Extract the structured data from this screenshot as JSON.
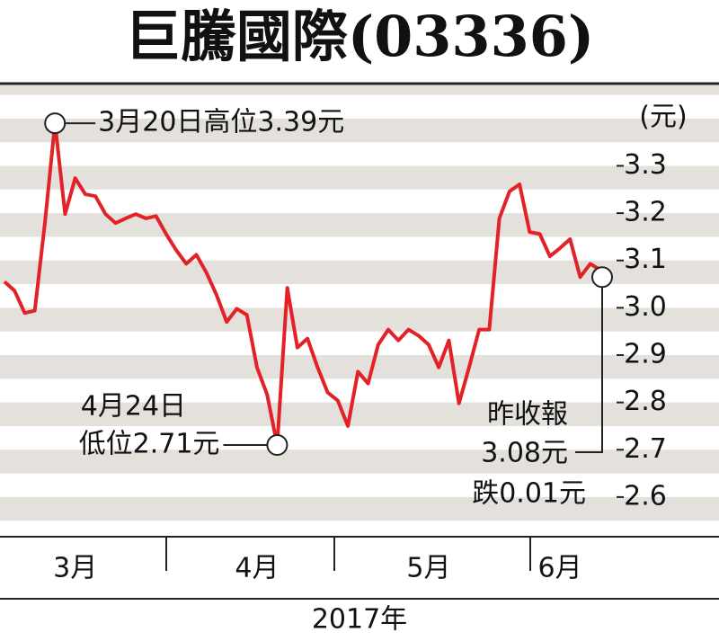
{
  "chart_data": {
    "type": "line",
    "title": "巨騰國際(03336)",
    "y_unit": "(元)",
    "x_label": "2017年",
    "color": "#e32228",
    "categories": [
      null,
      null,
      null,
      null,
      null,
      null,
      null,
      "3月",
      null,
      null,
      null,
      null,
      null,
      null,
      null,
      null,
      null,
      null,
      null,
      null,
      null,
      null,
      null,
      null,
      null,
      "4月",
      null,
      null,
      null,
      null,
      null,
      null,
      null,
      null,
      null,
      null,
      null,
      null,
      null,
      null,
      null,
      null,
      "5月",
      null,
      null,
      null,
      null,
      null,
      null,
      null,
      null,
      null,
      null,
      null,
      null,
      "6月",
      null,
      null,
      null,
      null
    ],
    "values": [
      3.055,
      3.036,
      2.989,
      2.994,
      3.179,
      3.39,
      3.198,
      3.274,
      3.24,
      3.236,
      3.198,
      3.179,
      3.189,
      3.198,
      3.189,
      3.194,
      3.156,
      3.122,
      3.093,
      3.112,
      3.074,
      3.027,
      2.97,
      2.998,
      2.985,
      2.874,
      2.817,
      2.71,
      3.042,
      2.916,
      2.935,
      2.874,
      2.821,
      2.804,
      2.75,
      2.865,
      2.84,
      2.922,
      2.954,
      2.931,
      2.954,
      2.941,
      2.922,
      2.874,
      2.931,
      2.798,
      2.874,
      2.954,
      2.954,
      3.189,
      3.246,
      3.261,
      3.16,
      3.156,
      3.109,
      3.126,
      3.145,
      3.065,
      3.093,
      3.08
    ],
    "ylim": [
      2.52,
      3.47
    ],
    "yticks": [
      2.6,
      2.7,
      2.8,
      2.9,
      {
        "value": 3,
        "label": "3.0"
      },
      3.1,
      3.2,
      3.3
    ],
    "annotations": {
      "high": [
        "3月20日高位3.39元"
      ],
      "low": [
        "4月24日",
        "低位2.71元"
      ],
      "last": [
        "昨收報",
        "3.08元",
        "跌0.01元"
      ]
    }
  }
}
